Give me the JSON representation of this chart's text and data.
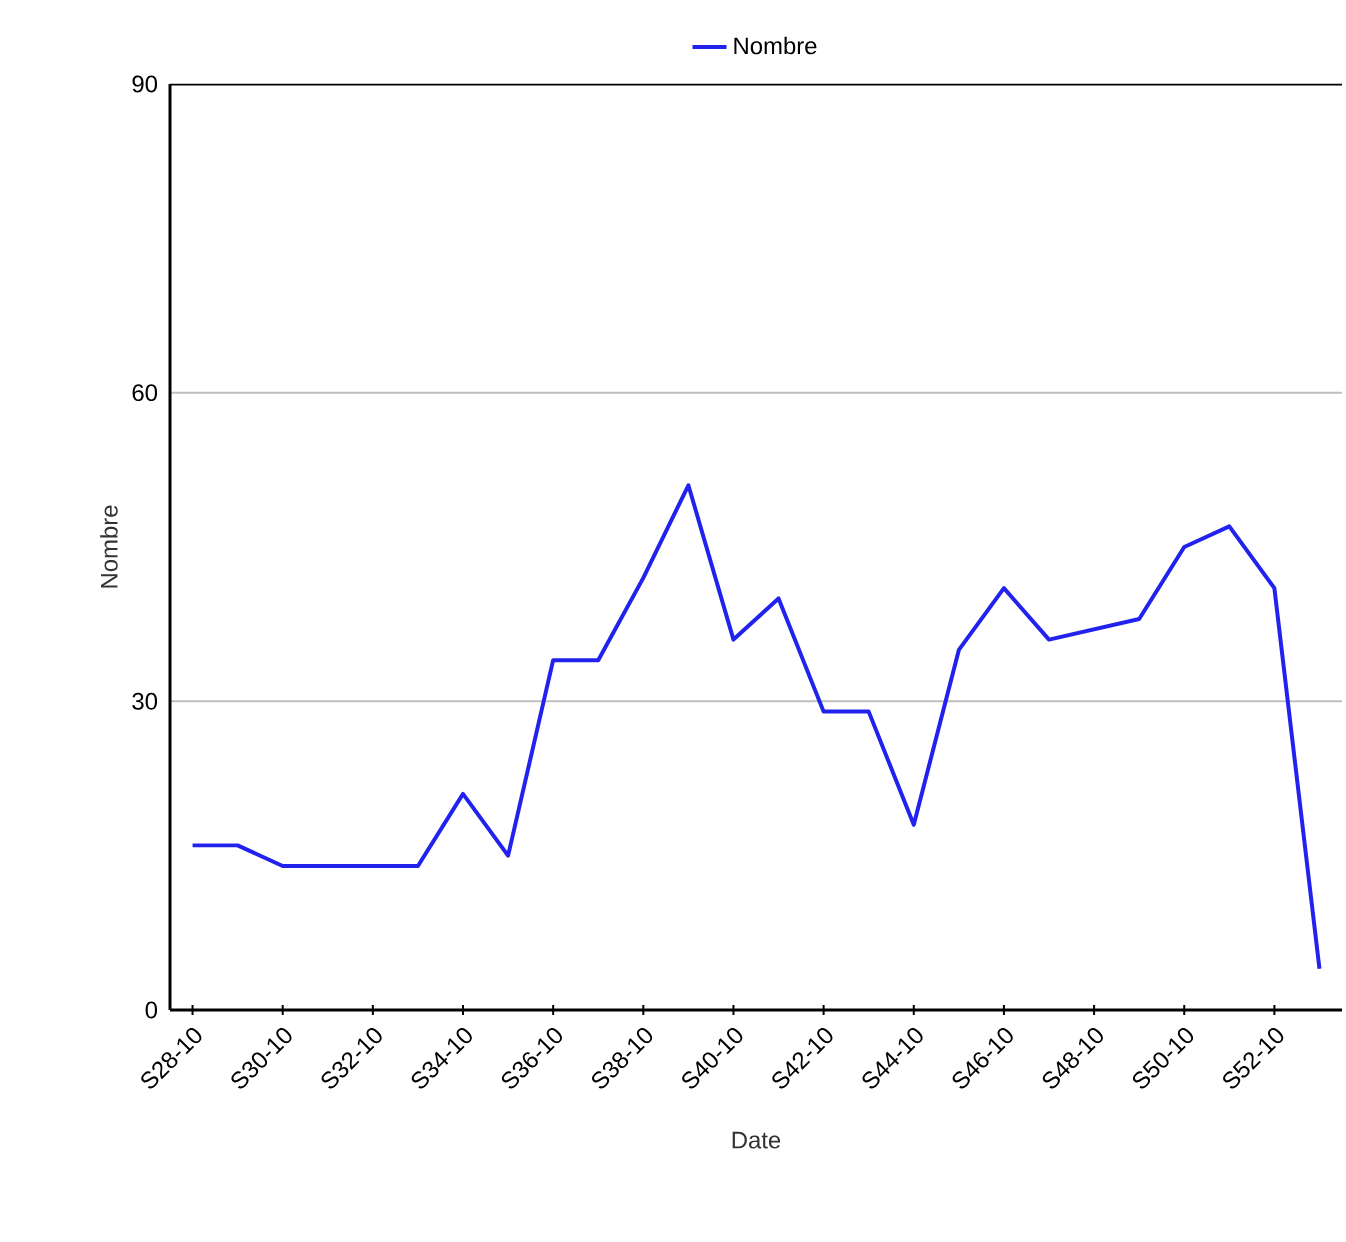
{
  "chart_data": {
    "type": "line",
    "xlabel": "Date",
    "ylabel": "Nombre",
    "categories": [
      "S28-10",
      null,
      "S30-10",
      null,
      "S32-10",
      null,
      "S34-10",
      null,
      "S36-10",
      null,
      "S38-10",
      null,
      "S40-10",
      null,
      "S42-10",
      null,
      "S44-10",
      null,
      "S46-10",
      null,
      "S48-10",
      null,
      "S50-10",
      null,
      "S52-10",
      null
    ],
    "series": [
      {
        "name": "Nombre",
        "color": "#2222ee",
        "values": [
          16,
          16,
          14,
          14,
          14,
          14,
          21,
          15,
          34,
          34,
          42,
          51,
          36,
          40,
          29,
          29,
          18,
          35,
          41,
          36,
          37,
          38,
          45,
          47,
          41,
          4
        ]
      }
    ],
    "ylim": [
      0,
      90
    ],
    "yticks": [
      0,
      30,
      60,
      90
    ],
    "grid": "y",
    "legend": "top",
    "marker": "none",
    "line_style": "solid"
  }
}
